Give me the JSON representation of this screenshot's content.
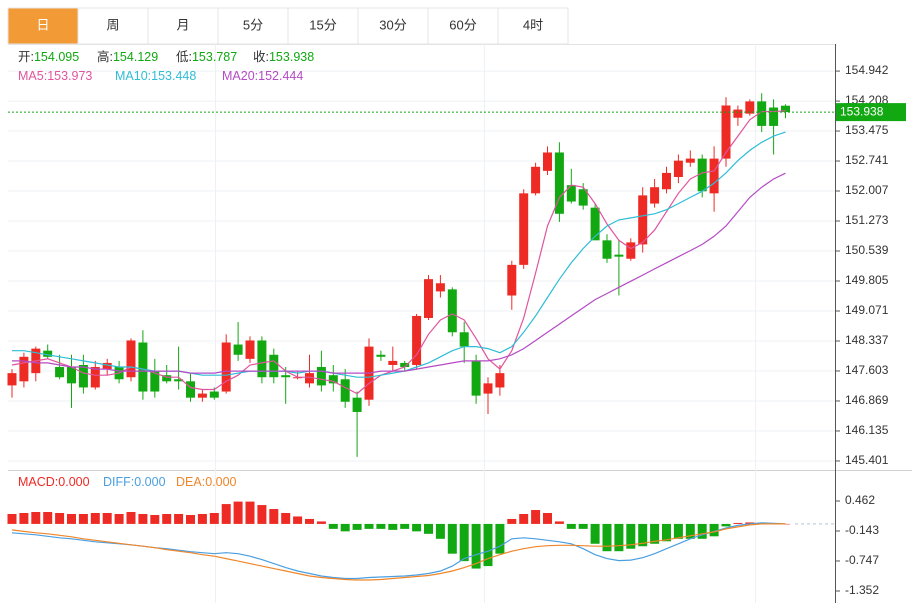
{
  "tabs": [
    "日",
    "周",
    "月",
    "5分",
    "15分",
    "30分",
    "60分",
    "4时"
  ],
  "active_tab": 0,
  "chart_data": [
    {
      "type": "candlestick",
      "header": [
        {
          "label": "开:",
          "value": 154.095
        },
        {
          "label": "高:",
          "value": 154.129
        },
        {
          "label": "低:",
          "value": 153.787
        },
        {
          "label": "收:",
          "value": 153.938
        }
      ],
      "up_color": "#ee2a24",
      "down_color": "#12a812",
      "open": [
        147.25,
        147.35,
        147.55,
        148.1,
        147.7,
        147.7,
        147.75,
        147.2,
        147.65,
        147.7,
        147.45,
        148.3,
        147.6,
        147.5,
        147.4,
        147.35,
        146.95,
        147.1,
        147.1,
        148.25,
        147.9,
        148.35,
        148.0,
        147.5,
        147.45,
        147.3,
        147.7,
        147.5,
        147.4,
        146.95,
        146.9,
        148.0,
        147.75,
        147.8,
        147.75,
        148.9,
        149.55,
        149.6,
        148.55,
        147.85,
        147.05,
        147.2,
        149.45,
        150.2,
        151.95,
        152.5,
        152.95,
        152.15,
        152.05,
        151.6,
        150.8,
        150.45,
        150.35,
        150.7,
        151.7,
        152.05,
        152.35,
        152.7,
        152.8,
        151.95,
        152.8,
        153.8,
        153.9,
        154.2,
        154.05,
        154.095
      ],
      "high": [
        147.65,
        148.05,
        148.2,
        148.25,
        148.0,
        148.0,
        148.0,
        147.85,
        147.9,
        147.85,
        148.4,
        148.6,
        147.9,
        147.75,
        148.2,
        147.55,
        147.15,
        147.2,
        148.5,
        148.8,
        148.45,
        148.45,
        148.15,
        147.7,
        147.6,
        148.0,
        148.1,
        147.75,
        147.65,
        147.1,
        148.4,
        148.1,
        148.2,
        147.85,
        149.0,
        149.95,
        149.95,
        149.65,
        148.8,
        148.0,
        147.45,
        147.75,
        150.3,
        152.05,
        152.7,
        153.1,
        153.2,
        152.55,
        152.2,
        151.7,
        150.95,
        150.8,
        150.85,
        152.1,
        152.3,
        152.6,
        152.9,
        153.0,
        152.9,
        153.1,
        154.3,
        154.1,
        154.25,
        154.4,
        154.25,
        154.129
      ],
      "low": [
        146.95,
        147.2,
        147.35,
        147.9,
        147.4,
        146.7,
        147.05,
        147.15,
        147.5,
        147.3,
        147.35,
        146.9,
        146.95,
        147.3,
        147.15,
        146.85,
        146.85,
        146.9,
        147.05,
        147.85,
        147.8,
        147.3,
        147.3,
        146.8,
        147.4,
        147.2,
        147.1,
        147.1,
        146.7,
        145.5,
        146.75,
        147.85,
        147.6,
        147.6,
        147.65,
        148.85,
        149.4,
        148.45,
        147.8,
        146.8,
        146.55,
        147.0,
        149.1,
        150.1,
        151.9,
        152.4,
        151.25,
        151.7,
        151.55,
        150.85,
        150.25,
        149.45,
        150.3,
        150.5,
        151.6,
        151.95,
        152.2,
        152.6,
        151.85,
        151.5,
        152.6,
        153.6,
        153.85,
        153.45,
        152.9,
        153.787
      ],
      "close": [
        147.55,
        147.95,
        148.15,
        147.95,
        147.45,
        147.3,
        147.2,
        147.7,
        147.8,
        147.4,
        148.35,
        147.1,
        147.1,
        147.35,
        147.35,
        146.95,
        147.05,
        146.95,
        148.3,
        148.0,
        148.35,
        147.45,
        147.45,
        147.45,
        147.45,
        147.55,
        147.25,
        147.3,
        146.85,
        146.6,
        148.2,
        147.95,
        147.85,
        147.7,
        148.95,
        149.85,
        149.75,
        148.55,
        148.2,
        147.0,
        147.3,
        147.55,
        150.2,
        151.95,
        152.6,
        152.95,
        151.45,
        151.75,
        151.65,
        150.8,
        150.35,
        150.4,
        150.75,
        151.9,
        152.1,
        152.45,
        152.75,
        152.8,
        152.0,
        152.8,
        154.1,
        154.0,
        154.2,
        153.6,
        153.6,
        153.938
      ],
      "series": [
        {
          "name": "MA5:",
          "color": "#e0549e",
          "values": [
            147.75,
            147.8,
            147.85,
            147.9,
            147.8,
            147.7,
            147.55,
            147.5,
            147.5,
            147.55,
            147.7,
            147.65,
            147.55,
            147.45,
            147.45,
            147.2,
            147.15,
            147.15,
            147.35,
            147.5,
            147.75,
            147.8,
            147.85,
            147.6,
            147.45,
            147.45,
            147.4,
            147.35,
            147.2,
            147.05,
            147.3,
            147.5,
            147.6,
            147.7,
            148.0,
            148.5,
            148.85,
            149.0,
            148.85,
            148.4,
            147.9,
            147.65,
            148.1,
            148.9,
            150.0,
            151.15,
            151.85,
            152.15,
            152.1,
            151.7,
            151.2,
            150.8,
            150.6,
            150.75,
            151.05,
            151.5,
            151.95,
            152.3,
            152.45,
            152.5,
            152.95,
            153.35,
            153.75,
            153.95,
            153.95,
            153.973
          ]
        },
        {
          "name": "MA10:",
          "color": "#2ebdd6",
          "values": [
            148.1,
            148.1,
            148.05,
            148.0,
            147.95,
            147.9,
            147.85,
            147.8,
            147.75,
            147.7,
            147.7,
            147.65,
            147.6,
            147.6,
            147.6,
            147.55,
            147.5,
            147.5,
            147.5,
            147.55,
            147.6,
            147.6,
            147.6,
            147.6,
            147.55,
            147.6,
            147.6,
            147.55,
            147.5,
            147.45,
            147.45,
            147.5,
            147.55,
            147.6,
            147.7,
            147.8,
            147.95,
            148.1,
            148.2,
            148.2,
            148.15,
            148.05,
            148.2,
            148.55,
            148.95,
            149.4,
            149.85,
            150.25,
            150.6,
            150.9,
            151.15,
            151.3,
            151.35,
            151.4,
            151.45,
            151.55,
            151.7,
            151.85,
            152.0,
            152.2,
            152.45,
            152.75,
            153.0,
            153.2,
            153.35,
            153.448
          ]
        },
        {
          "name": "MA20:",
          "color": "#b44bc4",
          "values": [
            147.85,
            147.85,
            147.8,
            147.8,
            147.75,
            147.7,
            147.7,
            147.65,
            147.65,
            147.6,
            147.6,
            147.6,
            147.6,
            147.6,
            147.6,
            147.55,
            147.55,
            147.55,
            147.6,
            147.6,
            147.6,
            147.6,
            147.6,
            147.6,
            147.6,
            147.6,
            147.6,
            147.55,
            147.55,
            147.55,
            147.55,
            147.6,
            147.6,
            147.6,
            147.65,
            147.7,
            147.75,
            147.8,
            147.85,
            147.85,
            147.85,
            147.9,
            148.0,
            148.15,
            148.35,
            148.55,
            148.75,
            148.95,
            149.15,
            149.35,
            149.5,
            149.65,
            149.8,
            149.95,
            150.1,
            150.25,
            150.4,
            150.55,
            150.7,
            150.9,
            151.15,
            151.5,
            151.85,
            152.1,
            152.3,
            152.444
          ]
        }
      ],
      "ylim": [
        145.18,
        155.58
      ],
      "yticks": [
        154.942,
        154.208,
        153.475,
        152.741,
        152.007,
        151.273,
        150.539,
        149.805,
        149.071,
        148.337,
        147.603,
        146.869,
        146.135,
        145.401
      ],
      "grid": true
    },
    {
      "type": "macd",
      "bars": {
        "name": "MACD:",
        "value_label": "0.000",
        "up_color": "#ee2a24",
        "down_color": "#12a812",
        "values": [
          0.2,
          0.22,
          0.24,
          0.24,
          0.22,
          0.2,
          0.2,
          0.22,
          0.22,
          0.2,
          0.24,
          0.2,
          0.18,
          0.2,
          0.2,
          0.18,
          0.2,
          0.22,
          0.4,
          0.45,
          0.45,
          0.38,
          0.3,
          0.22,
          0.15,
          0.1,
          0.05,
          -0.1,
          -0.15,
          -0.12,
          -0.1,
          -0.1,
          -0.12,
          -0.1,
          -0.15,
          -0.2,
          -0.3,
          -0.6,
          -0.75,
          -0.9,
          -0.85,
          -0.6,
          0.1,
          0.2,
          0.28,
          0.22,
          0.05,
          -0.1,
          -0.1,
          -0.4,
          -0.55,
          -0.55,
          -0.5,
          -0.45,
          -0.4,
          -0.35,
          -0.3,
          -0.3,
          -0.3,
          -0.25,
          -0.05,
          0.02,
          0.03,
          0.02,
          0.01,
          0
        ]
      },
      "series": [
        {
          "name": "DIFF:",
          "value_label": "0.000",
          "color": "#4a9fe0",
          "values": [
            -0.18,
            -0.2,
            -0.22,
            -0.25,
            -0.28,
            -0.3,
            -0.33,
            -0.36,
            -0.38,
            -0.4,
            -0.42,
            -0.45,
            -0.48,
            -0.5,
            -0.53,
            -0.56,
            -0.58,
            -0.6,
            -0.58,
            -0.6,
            -0.65,
            -0.72,
            -0.8,
            -0.88,
            -0.95,
            -1.0,
            -1.05,
            -1.08,
            -1.1,
            -1.1,
            -1.08,
            -1.07,
            -1.06,
            -1.05,
            -1.03,
            -1.0,
            -0.95,
            -0.85,
            -0.7,
            -0.62,
            -0.55,
            -0.45,
            -0.3,
            -0.28,
            -0.3,
            -0.33,
            -0.36,
            -0.4,
            -0.5,
            -0.62,
            -0.7,
            -0.74,
            -0.73,
            -0.68,
            -0.6,
            -0.5,
            -0.4,
            -0.3,
            -0.22,
            -0.15,
            -0.08,
            -0.03,
            0.0,
            0.02,
            0.01,
            0
          ]
        },
        {
          "name": "DEA:",
          "value_label": "0.000",
          "color": "#f0862a",
          "values": [
            -0.12,
            -0.15,
            -0.18,
            -0.2,
            -0.23,
            -0.26,
            -0.3,
            -0.33,
            -0.36,
            -0.39,
            -0.42,
            -0.45,
            -0.48,
            -0.52,
            -0.55,
            -0.58,
            -0.62,
            -0.65,
            -0.7,
            -0.75,
            -0.8,
            -0.85,
            -0.9,
            -0.95,
            -1.0,
            -1.05,
            -1.08,
            -1.1,
            -1.12,
            -1.13,
            -1.13,
            -1.12,
            -1.1,
            -1.08,
            -1.06,
            -1.04,
            -1.0,
            -0.95,
            -0.88,
            -0.8,
            -0.7,
            -0.62,
            -0.55,
            -0.5,
            -0.46,
            -0.44,
            -0.43,
            -0.43,
            -0.44,
            -0.45,
            -0.45,
            -0.44,
            -0.42,
            -0.39,
            -0.35,
            -0.32,
            -0.28,
            -0.24,
            -0.2,
            -0.16,
            -0.1,
            -0.06,
            -0.02,
            0.0,
            0.0,
            0
          ]
        }
      ],
      "ylim": [
        -1.594,
        0.986
      ],
      "yticks": [
        0.462,
        -0.143,
        -0.747,
        -1.352
      ],
      "grid": false
    }
  ]
}
